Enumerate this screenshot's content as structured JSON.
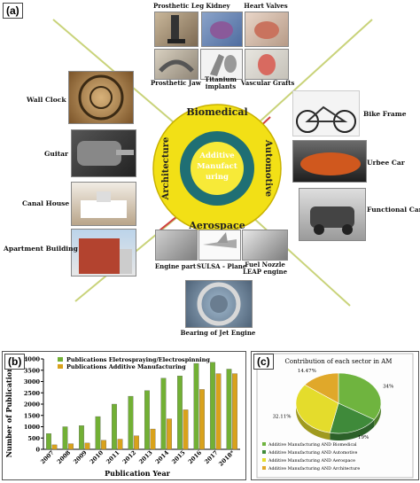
{
  "panel_a": {
    "label": "(a)",
    "center": {
      "text_lines": [
        "Additive",
        "Manufact",
        "uring"
      ],
      "sectors": {
        "top": "Biomedical",
        "right": "Automotive",
        "bottom": "Aerospace",
        "left": "Architecture"
      }
    },
    "biomedical": [
      "Prosthetic Leg",
      "Kidney",
      "Heart Valves",
      "Prosthetic Jaw",
      "Titanium implants",
      "Vascular Grafts"
    ],
    "architecture": [
      "Wall Clock",
      "Guitar",
      "Canal House",
      "Apartment Building"
    ],
    "automotive": [
      "Bike Frame",
      "Urbee Car",
      "Functional Car"
    ],
    "aerospace": [
      "Engine part",
      "SULSA - Plane",
      "Fuel Nozzle",
      "LEAP engine",
      "Bearing of Jet Engine"
    ]
  },
  "panel_b": {
    "label": "(b)",
    "chart_data": {
      "type": "bar",
      "categories": [
        "2007",
        "2008",
        "2009",
        "2010",
        "2011",
        "2012",
        "2013",
        "2014",
        "2015",
        "2016",
        "2017",
        "2018*"
      ],
      "series": [
        {
          "name": "Publications Eletrospraying/Electrospinning",
          "color": "#72b035",
          "values": [
            700,
            1000,
            1050,
            1450,
            2000,
            2350,
            2600,
            3150,
            3250,
            3800,
            3850,
            3550
          ]
        },
        {
          "name": "Publications Additive Manufacturing",
          "color": "#d9a21b",
          "values": [
            200,
            250,
            280,
            400,
            450,
            600,
            900,
            1350,
            1750,
            2650,
            3350,
            3350
          ]
        }
      ],
      "xlabel": "Publication Year",
      "ylabel": "Number of Publications",
      "ylim": [
        0,
        4000
      ],
      "yticks": [
        "0",
        "500",
        "1000",
        "1500",
        "2000",
        "2500",
        "3000",
        "3500",
        "4000"
      ],
      "grid": false,
      "legend": "top-left"
    }
  },
  "panel_c": {
    "label": "(c)",
    "chart_data": {
      "type": "pie",
      "title": "Contribution of each sector in AM",
      "slices": [
        {
          "name": "Additive Manufacturing AND Biomedical",
          "value": 34,
          "label": "34%",
          "color": "#6fb43f"
        },
        {
          "name": "Additive Manufacturing AND Automotive",
          "value": 19,
          "label": "19%",
          "color": "#3f8a3a"
        },
        {
          "name": "Additive Manufacturing AND Aerospace",
          "value": 32.11,
          "label": "32.11%",
          "color": "#e4dc2c"
        },
        {
          "name": "Additive Manufacturing AND Architecture",
          "value": 14.47,
          "label": "14.47%",
          "color": "#e0a82a"
        }
      ],
      "legend": "bottom"
    }
  }
}
